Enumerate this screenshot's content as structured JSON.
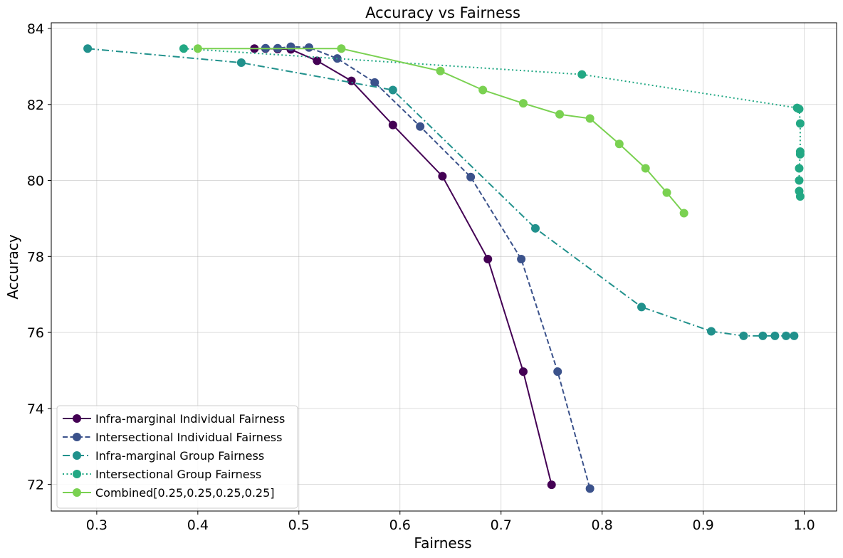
{
  "chart_data": {
    "type": "line",
    "title": "Accuracy vs Fairness",
    "xlabel": "Fairness",
    "ylabel": "Accuracy",
    "xlim": [
      0.255,
      1.032
    ],
    "ylim": [
      71.3,
      84.15
    ],
    "xticks": [
      0.3,
      0.4,
      0.5,
      0.6,
      0.7,
      0.8,
      0.9,
      1.0
    ],
    "xtick_labels": [
      "0.3",
      "0.4",
      "0.5",
      "0.6",
      "0.7",
      "0.8",
      "0.9",
      "1.0"
    ],
    "yticks": [
      72,
      74,
      76,
      78,
      80,
      82,
      84
    ],
    "ytick_labels": [
      "72",
      "74",
      "76",
      "78",
      "80",
      "82",
      "84"
    ],
    "grid": true,
    "legend_position": "lower-left",
    "series": [
      {
        "name": "Infra-marginal Individual Fairness",
        "color": "#440154",
        "linestyle": "solid",
        "x": [
          0.456,
          0.467,
          0.479,
          0.492,
          0.518,
          0.552,
          0.593,
          0.642,
          0.687,
          0.722,
          0.75
        ],
        "y": [
          83.47,
          83.47,
          83.46,
          83.45,
          83.15,
          82.62,
          81.46,
          80.11,
          77.93,
          74.97,
          71.99
        ]
      },
      {
        "name": "Intersectional Individual Fairness",
        "color": "#3b528b",
        "linestyle": "dashed",
        "x": [
          0.467,
          0.479,
          0.492,
          0.51,
          0.538,
          0.575,
          0.62,
          0.67,
          0.72,
          0.756,
          0.788
        ],
        "y": [
          83.48,
          83.48,
          83.52,
          83.5,
          83.21,
          82.58,
          81.42,
          80.09,
          77.93,
          74.97,
          71.89
        ]
      },
      {
        "name": "Infra-marginal Group Fairness",
        "color": "#21918c",
        "linestyle": "dashdot",
        "x": [
          0.291,
          0.443,
          0.593,
          0.734,
          0.839,
          0.908,
          0.94,
          0.959,
          0.971,
          0.982,
          0.99
        ],
        "y": [
          83.47,
          83.1,
          82.38,
          78.74,
          76.67,
          76.03,
          75.91,
          75.91,
          75.91,
          75.91,
          75.91
        ]
      },
      {
        "name": "Intersectional Group Fairness",
        "color": "#22a884",
        "linestyle": "dotted",
        "x": [
          0.386,
          0.78,
          0.993,
          0.995,
          0.996,
          0.996,
          0.996,
          0.995,
          0.995,
          0.995,
          0.996
        ],
        "y": [
          83.47,
          82.79,
          81.91,
          81.88,
          81.5,
          80.76,
          80.69,
          80.32,
          80.0,
          79.72,
          79.58
        ]
      },
      {
        "name": "Combined[0.25,0.25,0.25,0.25]",
        "color": "#7ad151",
        "linestyle": "solid",
        "x": [
          0.4,
          0.542,
          0.64,
          0.682,
          0.722,
          0.758,
          0.788,
          0.817,
          0.843,
          0.864,
          0.881
        ],
        "y": [
          83.47,
          83.47,
          82.88,
          82.38,
          82.03,
          81.74,
          81.63,
          80.96,
          80.32,
          79.68,
          79.14
        ]
      }
    ]
  }
}
